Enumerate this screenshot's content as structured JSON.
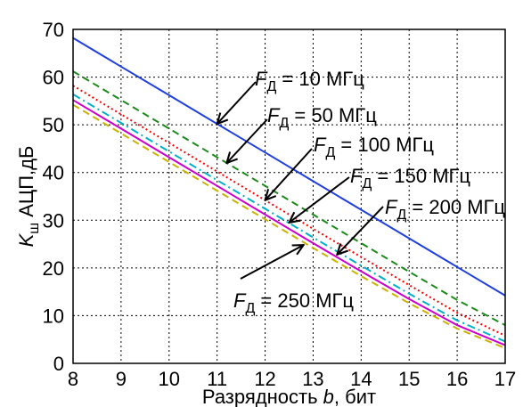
{
  "chart_data": {
    "type": "line",
    "x": [
      8,
      9,
      10,
      11,
      12,
      13,
      14,
      15,
      16,
      17
    ],
    "xlim": [
      8,
      17
    ],
    "ylim": [
      0,
      70
    ],
    "x_ticks": [
      "8",
      "9",
      "10",
      "11",
      "12",
      "13",
      "14",
      "15",
      "16",
      "17"
    ],
    "y_ticks": [
      "0",
      "10",
      "20",
      "30",
      "40",
      "50",
      "60",
      "70"
    ],
    "xlabel": {
      "prefix": "Разрядность ",
      "var": "b",
      "suffix": ", бит"
    },
    "ylabel": {
      "var": "K",
      "sub": "ш",
      "suffix": " АЦП,дБ"
    },
    "grid": true,
    "series": [
      {
        "name": "Fд = 10 МГц",
        "color": "#1f3fe0",
        "dash": "solid",
        "values": [
          68.2,
          62.2,
          56.2,
          50.2,
          44.2,
          38.2,
          32.2,
          26.2,
          20.2,
          14.2
        ]
      },
      {
        "name": "Fд = 50 МГц",
        "color": "#1a8a1a",
        "dash": "dashed",
        "values": [
          61.2,
          55.2,
          49.2,
          43.2,
          37.2,
          31.2,
          25.2,
          19.2,
          13.3,
          8.0
        ]
      },
      {
        "name": "Fд = 100 МГц",
        "color": "#ff0000",
        "dash": "dotted",
        "values": [
          58.2,
          52.2,
          46.2,
          40.2,
          34.2,
          28.2,
          22.3,
          16.4,
          10.6,
          5.8
        ]
      },
      {
        "name": "Fд = 150 МГц",
        "color": "#00b0c8",
        "dash": "dashdot",
        "values": [
          56.4,
          50.4,
          44.4,
          38.4,
          32.4,
          26.4,
          20.5,
          14.6,
          9.0,
          4.6
        ]
      },
      {
        "name": "Fд = 200 МГц",
        "color": "#cc00cc",
        "dash": "solid",
        "values": [
          55.2,
          49.2,
          43.2,
          37.2,
          31.2,
          25.2,
          19.3,
          13.5,
          8.0,
          3.8
        ]
      },
      {
        "name": "Fд = 250 МГц",
        "color": "#c8b400",
        "dash": "dashed",
        "values": [
          54.2,
          48.2,
          42.2,
          36.2,
          30.2,
          24.2,
          18.3,
          12.6,
          7.3,
          3.2
        ]
      }
    ],
    "annotations": [
      {
        "var": "F",
        "sub": "Д",
        "text": " = 10 МГц",
        "point_to": [
          11,
          50.2
        ],
        "anchor": "right"
      },
      {
        "var": "F",
        "sub": "Д",
        "text": " = 50 МГц",
        "point_to": [
          11.2,
          42.0
        ],
        "anchor": "right"
      },
      {
        "var": "F",
        "sub": "Д",
        "text": " = 100 МГц",
        "point_to": [
          12.0,
          34.2
        ],
        "anchor": "right"
      },
      {
        "var": "F",
        "sub": "Д",
        "text": " = 150 МГц",
        "point_to": [
          12.5,
          29.5
        ],
        "anchor": "right"
      },
      {
        "var": "F",
        "sub": "Д",
        "text": " = 200 МГц",
        "point_to": [
          13.5,
          22.8
        ],
        "anchor": "right"
      },
      {
        "var": "F",
        "sub": "Д",
        "text": " = 250 МГц",
        "point_to": [
          12.8,
          24.8
        ],
        "anchor": "left"
      }
    ]
  }
}
